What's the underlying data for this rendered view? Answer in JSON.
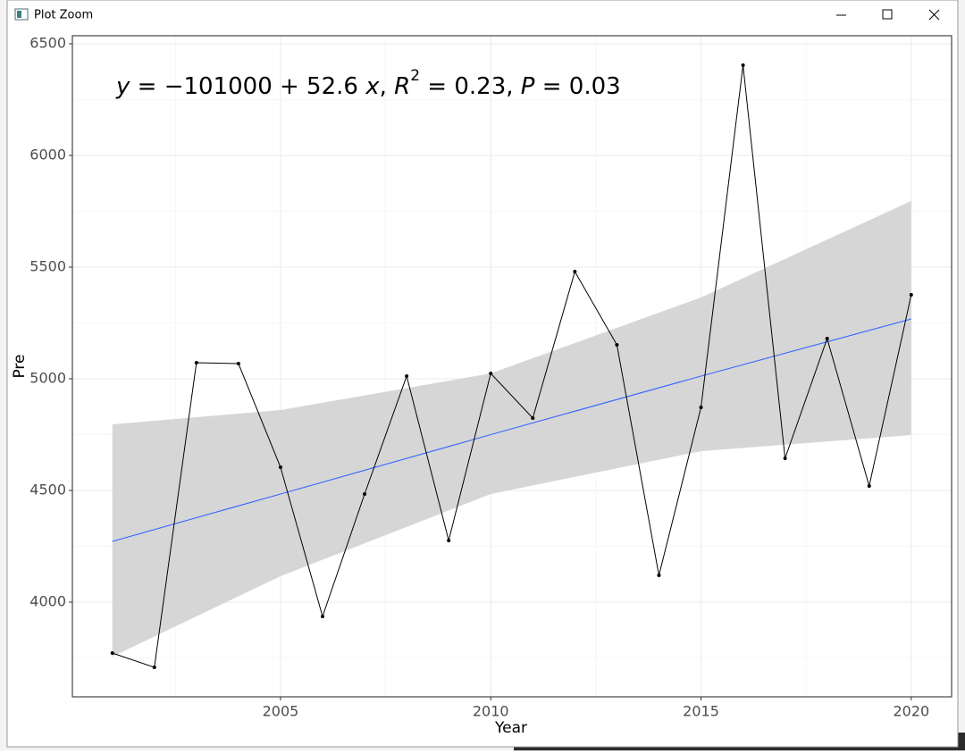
{
  "window": {
    "title": "Plot Zoom"
  },
  "chart_data": {
    "type": "line",
    "annotation": [
      "y",
      " = −101000 + 52.6 ",
      "x",
      ", ",
      "R",
      "2",
      " = 0.23, ",
      "P",
      " = 0.03"
    ],
    "x_label": "Year",
    "y_label": "Pre",
    "x": [
      2001,
      2002,
      2003,
      2004,
      2005,
      2006,
      2007,
      2008,
      2009,
      2010,
      2011,
      2012,
      2013,
      2014,
      2015,
      2016,
      2017,
      2018,
      2019,
      2020
    ],
    "series": [
      {
        "color": "#000000",
        "values": [
          3772,
          3708,
          5072,
          5068,
          4604,
          3936,
          4484,
          5012,
          4276,
          5024,
          4824,
          5480,
          5152,
          4120,
          4872,
          6404,
          4644,
          5180,
          4520,
          5376
        ]
      }
    ],
    "fit": {
      "x": [
        2001,
        2005,
        2010,
        2015,
        2020
      ],
      "values": [
        4272,
        4484,
        4750,
        5012,
        5268
      ],
      "lower": [
        3756,
        4116,
        4484,
        4676,
        4748
      ],
      "upper": [
        4796,
        4860,
        5024,
        5364,
        5796
      ],
      "color": "#3366ff",
      "band_color": "#d6d6d6"
    },
    "xlim": [
      2000.05,
      2020.96
    ],
    "ylim": [
      3576,
      6536
    ],
    "xticks": [
      2005,
      2010,
      2015,
      2020
    ],
    "yticks": [
      4000,
      4500,
      5000,
      5500,
      6000,
      6500
    ],
    "grid": true,
    "minor_grid": true
  }
}
